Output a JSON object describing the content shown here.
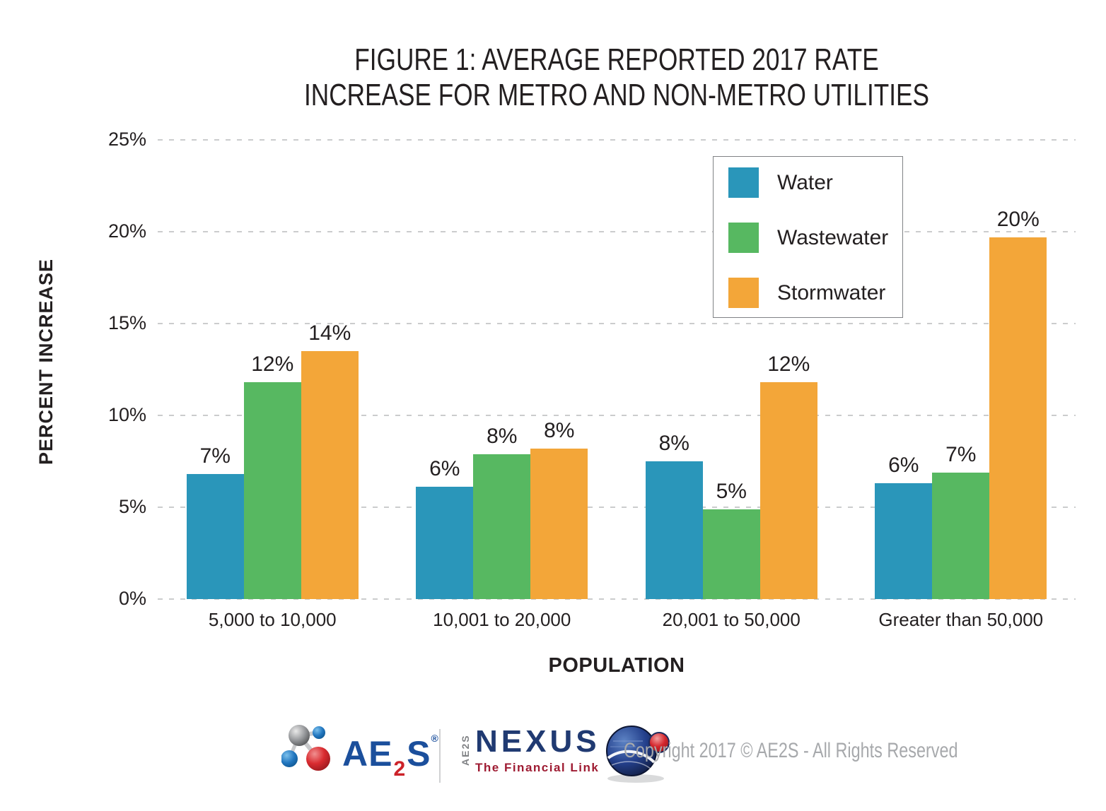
{
  "figure": {
    "title_line1": "FIGURE 1: AVERAGE REPORTED 2017 RATE",
    "title_line2": "INCREASE FOR METRO AND NON-METRO UTILITIES"
  },
  "chart_data": {
    "type": "bar",
    "title": "FIGURE 1: AVERAGE REPORTED 2017 RATE INCREASE FOR METRO AND NON-METRO UTILITIES",
    "xlabel": "POPULATION",
    "ylabel": "PERCENT INCREASE",
    "ylim": [
      0,
      25
    ],
    "ytick_step": 5,
    "ytick_labels": [
      "0%",
      "5%",
      "10%",
      "15%",
      "20%",
      "25%"
    ],
    "grid": "horizontal-dashed",
    "legend_position": "top-right",
    "categories": [
      "5,000 to 10,000",
      "10,001 to 20,000",
      "20,001 to 50,000",
      "Greater than 50,000"
    ],
    "series": [
      {
        "name": "Water",
        "color": "#2a96ba",
        "values": [
          7,
          6,
          8,
          6
        ],
        "value_labels": [
          "7%",
          "6%",
          "8%",
          "6%"
        ],
        "bar_heights_pct": [
          6.8,
          6.1,
          7.5,
          6.3
        ]
      },
      {
        "name": "Wastewater",
        "color": "#57b861",
        "values": [
          12,
          8,
          5,
          7
        ],
        "value_labels": [
          "12%",
          "8%",
          "5%",
          "7%"
        ],
        "bar_heights_pct": [
          11.8,
          7.9,
          4.9,
          6.9
        ]
      },
      {
        "name": "Stormwater",
        "color": "#f3a639",
        "values": [
          14,
          8,
          12,
          20
        ],
        "value_labels": [
          "14%",
          "8%",
          "12%",
          "20%"
        ],
        "bar_heights_pct": [
          13.5,
          8.2,
          11.8,
          19.7
        ]
      }
    ]
  },
  "footer": {
    "ae2s_logo": {
      "ae": "AE",
      "sub2": "2",
      "s": "S",
      "reg": "®"
    },
    "nexus_logo": {
      "vertical_text": "AE2S",
      "brand": "NEXUS",
      "tagline": "The Financial Link"
    },
    "copyright": "Copyright 2017 © AE2S - All Rights Reserved"
  },
  "colors": {
    "water": "#2a96ba",
    "wastewater": "#57b861",
    "stormwater": "#f3a639",
    "grid": "#cbcccd",
    "text": "#231f20",
    "legend_border": "#808285",
    "copyright_gray": "#a7a9ac",
    "logo_blue": "#1b4f9c",
    "logo_red": "#cc2229",
    "nexus_navy": "#203a72",
    "tagline_red": "#9e1b32"
  }
}
